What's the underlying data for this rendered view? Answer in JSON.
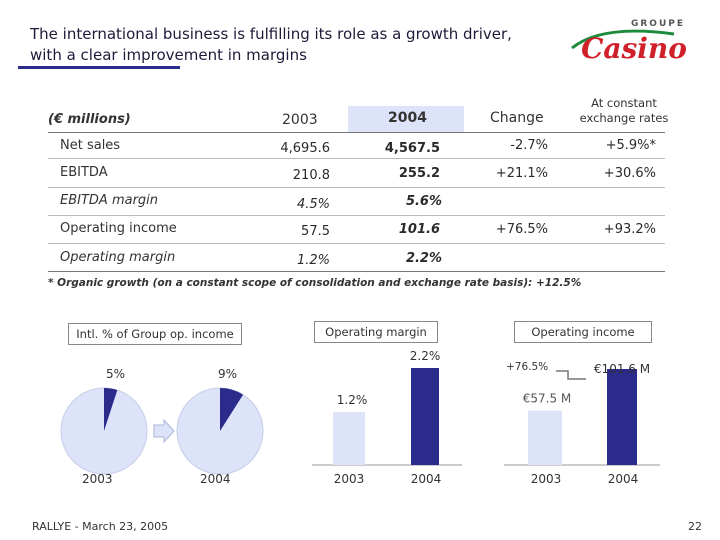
{
  "title": {
    "line1": "The international business is fulfilling its role as a growth driver,",
    "line2": "with a clear improvement in margins"
  },
  "logo": {
    "top": "GROUPE",
    "main": "Casino"
  },
  "table": {
    "unit": "(€ millions)",
    "col_2003": "2003",
    "col_2004": "2004",
    "col_change": "Change",
    "col_constant_1": "At constant",
    "col_constant_2": "exchange rates",
    "rows": [
      {
        "label": "Net sales",
        "v2003": "4,695.6",
        "v2004": "4,567.5",
        "change": "-2.7%",
        "constant": "+5.9%*"
      },
      {
        "label": "EBITDA",
        "v2003": "210.8",
        "v2004": "255.2",
        "change": "+21.1%",
        "constant": "+30.6%"
      },
      {
        "label": "EBITDA margin",
        "v2003": "4.5%",
        "v2004": "5.6%",
        "change": "",
        "constant": ""
      },
      {
        "label": "Operating income",
        "v2003": "57.5",
        "v2004": "101.6",
        "change": "+76.5%",
        "constant": "+93.2%"
      },
      {
        "label": "Operating margin",
        "v2003": "1.2%",
        "v2004": "2.2%",
        "change": "",
        "constant": ""
      }
    ],
    "footnote": "* Organic growth (on a constant scope of consolidation and exchange rate basis): +12.5%"
  },
  "colors": {
    "accent": "#2b2b8c",
    "light_fill": "#dde3f8",
    "logo_red": "#d0202a"
  },
  "chart_data": [
    {
      "type": "pie",
      "title": "Intl. % of Group op. income",
      "categories": [
        "2003",
        "2004"
      ],
      "values": [
        5,
        9
      ],
      "value_labels": [
        "5%",
        "9%"
      ]
    },
    {
      "type": "bar",
      "title": "Operating margin",
      "categories": [
        "2003",
        "2004"
      ],
      "values": [
        1.2,
        2.2
      ],
      "value_labels": [
        "1.2%",
        "2.2%"
      ]
    },
    {
      "type": "bar",
      "title": "Operating income",
      "categories": [
        "2003",
        "2004"
      ],
      "values": [
        57.5,
        101.6
      ],
      "value_labels": [
        "€57.5 M",
        "€101.6 M"
      ],
      "annotation": "+76.5%"
    }
  ],
  "footer": {
    "left": "RALLYE - March 23, 2005",
    "page": "22"
  }
}
